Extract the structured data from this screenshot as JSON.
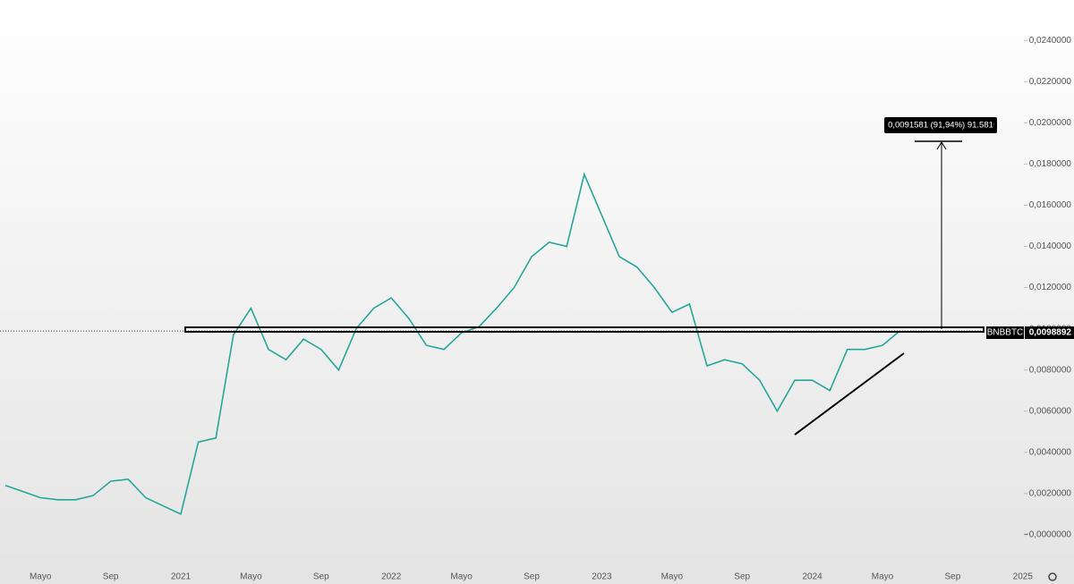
{
  "chart_data": {
    "type": "line",
    "categories": [
      null,
      null,
      "Mayo",
      null,
      null,
      null,
      "Sep",
      null,
      null,
      null,
      "2021",
      null,
      null,
      null,
      "Mayo",
      null,
      null,
      null,
      "Sep",
      null,
      null,
      null,
      "2022",
      null,
      null,
      null,
      "Mayo",
      null,
      null,
      null,
      "Sep",
      null,
      null,
      null,
      "2023",
      null,
      null,
      null,
      "Mayo",
      null,
      null,
      null,
      "Sep",
      null,
      null,
      null,
      "2024",
      null,
      null,
      null,
      "Mayo",
      null,
      null,
      null,
      "Sep",
      null,
      null,
      null,
      "2025"
    ],
    "series": [
      {
        "name": "BNBBTC",
        "color": "#26a69a",
        "values": [
          0.0024,
          0.0021,
          0.0018,
          0.0017,
          0.0017,
          0.0019,
          0.0026,
          0.0027,
          0.0018,
          0.0014,
          0.001,
          0.0045,
          0.0047,
          0.0097,
          0.011,
          0.009,
          0.0085,
          0.0095,
          0.009,
          0.008,
          0.01,
          0.011,
          0.0115,
          0.0105,
          0.0092,
          0.009,
          0.0098,
          0.0101,
          0.011,
          0.012,
          0.0135,
          0.0142,
          0.014,
          0.0175,
          0.0155,
          0.0135,
          0.013,
          0.012,
          0.0108,
          0.0112,
          0.0082,
          0.0085,
          0.0083,
          0.0075,
          0.006,
          0.0075,
          0.0075,
          0.007,
          0.009,
          0.009,
          0.0092,
          0.0099,
          null,
          null,
          null,
          null,
          null,
          null,
          null
        ]
      }
    ],
    "ylim": [
      -0.00139,
      0.02596
    ],
    "yticks": [
      {
        "value": 0,
        "label": "−0,0000000"
      },
      {
        "value": 0.002,
        "label": "0,0020000"
      },
      {
        "value": 0.004,
        "label": "0,0040000"
      },
      {
        "value": 0.006,
        "label": "0,0060000"
      },
      {
        "value": 0.008,
        "label": "0,0080000"
      },
      {
        "value": 0.01,
        "label": "0,0100000"
      },
      {
        "value": 0.012,
        "label": "0,0120000"
      },
      {
        "value": 0.014,
        "label": "0,0140000"
      },
      {
        "value": 0.016,
        "label": "0,0160000"
      },
      {
        "value": 0.018,
        "label": "0,0180000"
      },
      {
        "value": 0.02,
        "label": "0,0200000"
      },
      {
        "value": 0.022,
        "label": "0,0220000"
      },
      {
        "value": 0.024,
        "label": "0,0240000"
      }
    ],
    "last_price": {
      "value": 0.0098892,
      "label": "0,0098892"
    },
    "measure_label": "0,0091581 (91,94%) 91.581"
  }
}
